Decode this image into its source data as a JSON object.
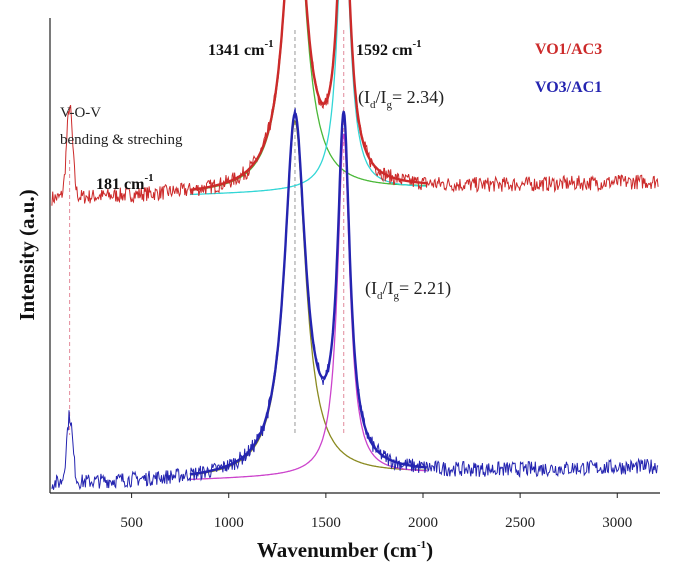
{
  "chart_data": {
    "type": "line",
    "title": "",
    "xlabel": "Wavenumber (cm",
    "xlabel_sup": "-1",
    "xlabel_close": ")",
    "ylabel": "Intensity (a.u.)",
    "xlim": [
      80,
      3220
    ],
    "xticks": [
      500,
      1000,
      1500,
      2000,
      2500,
      3000
    ],
    "y_ticks_shown": false,
    "grid": false,
    "legend_position": "top-right",
    "series": [
      {
        "name": "VO1/AC3",
        "color": "#cc2a2a",
        "offset": 0.62,
        "d_peak": 1341,
        "g_peak": 1592,
        "d_height": 0.68,
        "g_height": 0.62,
        "v_height": 0.19
      },
      {
        "name": "VO3/AC1",
        "color": "#2424b0",
        "offset": 0.02,
        "d_peak": 1341,
        "g_peak": 1592,
        "d_height": 0.75,
        "g_height": 0.72,
        "v_height": 0.14
      }
    ],
    "fit_components": [
      {
        "series": "VO1/AC3",
        "peak": 1341,
        "color": "#4ab838"
      },
      {
        "series": "VO1/AC3",
        "peak": 1592,
        "color": "#33d6d6"
      },
      {
        "series": "VO3/AC1",
        "peak": 1341,
        "color": "#8a8a20"
      },
      {
        "series": "VO3/AC1",
        "peak": 1592,
        "color": "#cc44cc"
      }
    ],
    "reference_lines": [
      181,
      1341,
      1592
    ],
    "annotations": {
      "vov_label": "V-O-V",
      "vov_desc": "bending & streching",
      "peak_181": "181 cm",
      "peak_1341": "1341 cm",
      "peak_1592": "1592 cm",
      "unit_sup": "-1",
      "ratio_top_open": "(I",
      "ratio_sub_d": "d",
      "ratio_slash": "/I",
      "ratio_sub_g": "g",
      "ratio_top_value": "= 2.34)",
      "ratio_bottom_value": "= 2.21)"
    }
  }
}
